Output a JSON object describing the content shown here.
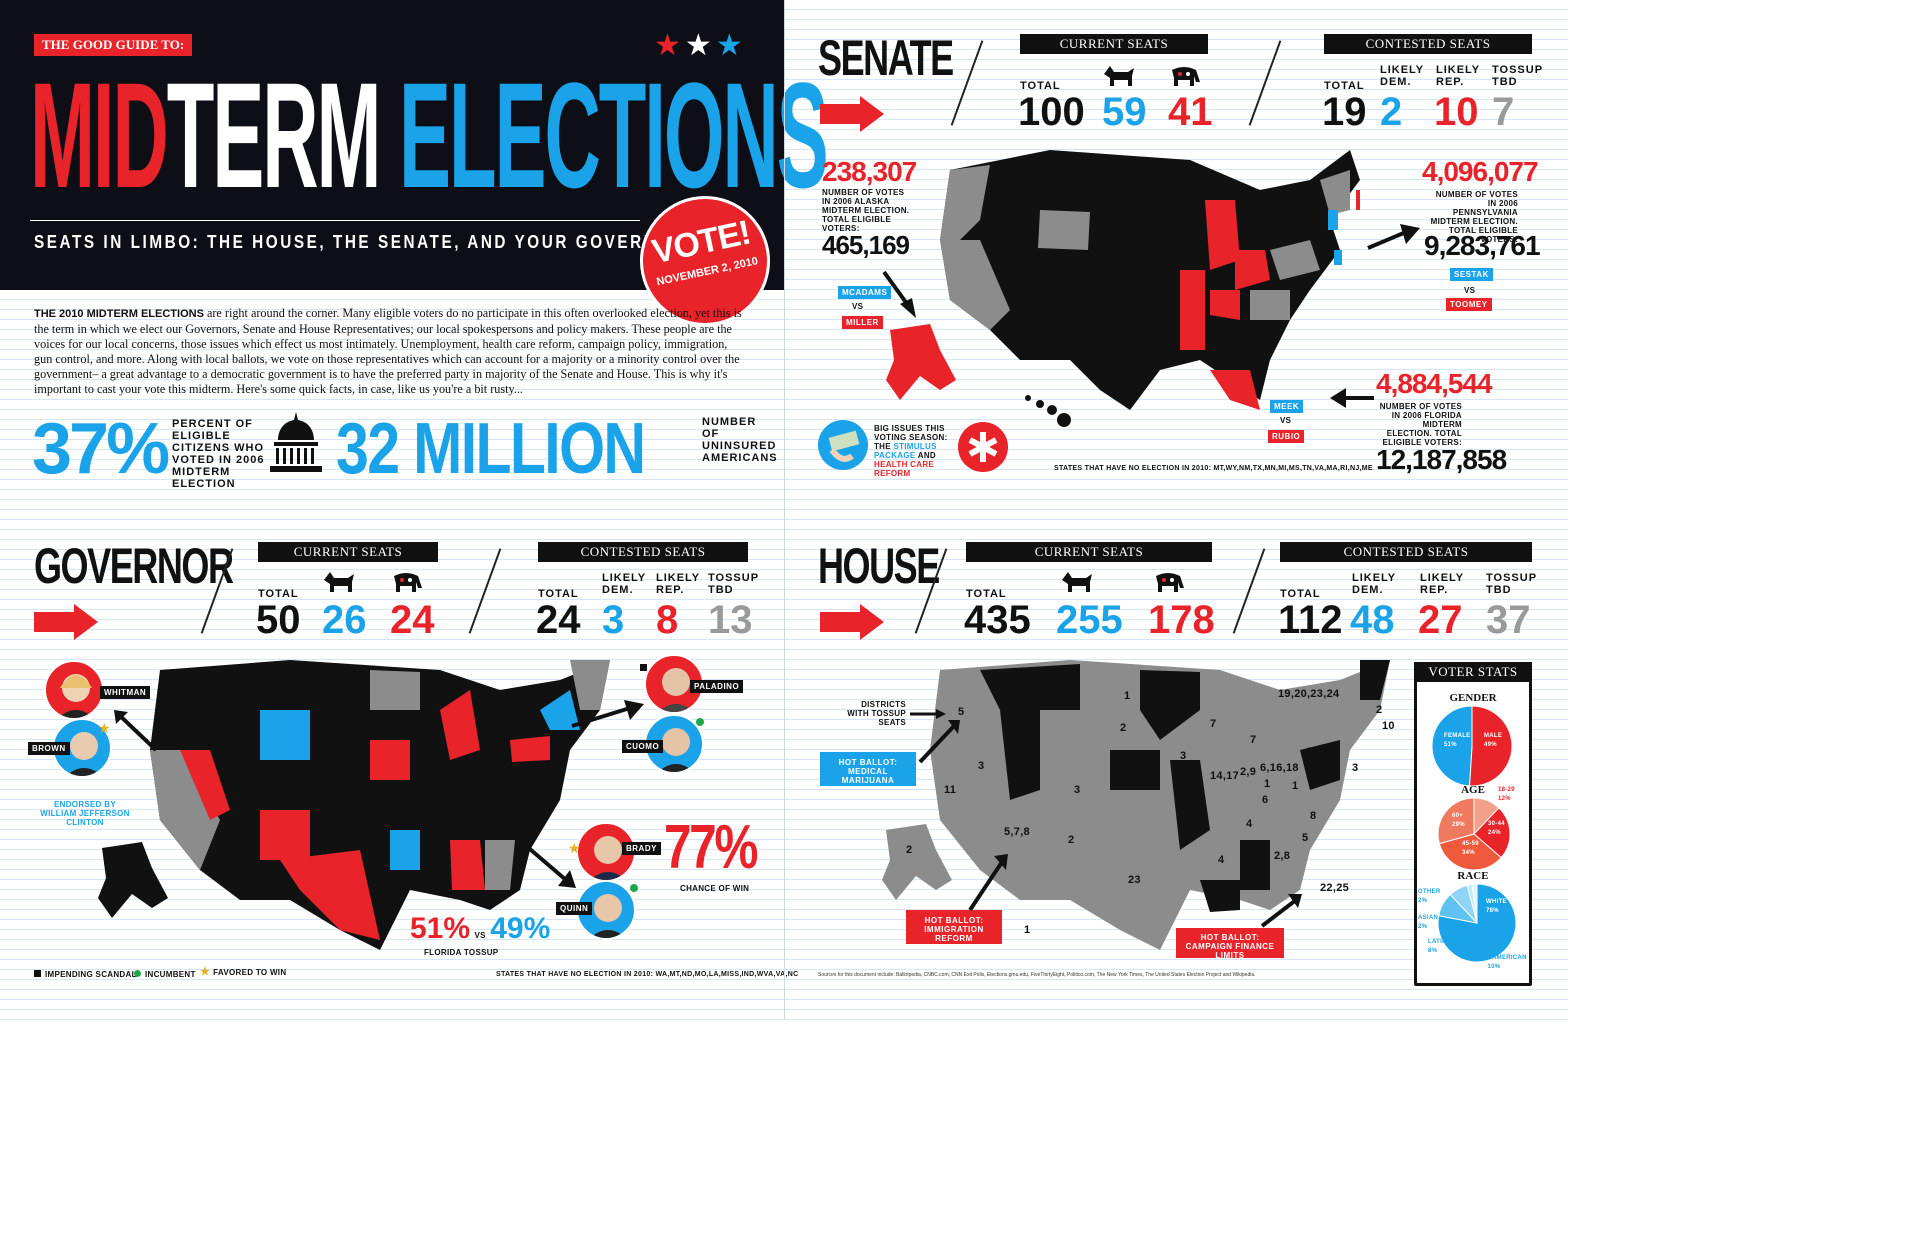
{
  "header": {
    "kicker": "THE GOOD GUIDE TO:",
    "title_mid": "MID",
    "title_term": "TERM",
    "title_elections": "ELECTIONS",
    "subtitle": "SEATS IN LIMBO: THE HOUSE, THE SENATE, AND YOUR GOVERNORS",
    "vote_badge": "VOTE!",
    "vote_date": "NOVEMBER 2, 2010",
    "stars": [
      "★",
      "★",
      "★"
    ]
  },
  "intro": {
    "lead": "THE 2010 MIDTERM ELECTIONS",
    "body": " are right around the corner. Many eligible voters do no participate in this often overlooked election, yet this is the term in which we elect our Governors, Senate and House Representatives; our local spokespersons and policy makers. These people are the voices for our local concerns, those issues which effect us most intimately. Unemployment, health care reform, campaign policy, immigration, gun control, and more. Along with local ballots, we vote on those representatives which can account for a majority or a minority control over the government– a great advantage to a democratic government is to have the preferred party in majority of the Senate and House. This is why it's important to cast your vote this midterm. Here's some quick facts, in case, like us you're a bit rusty...",
    "stat1_value": "37%",
    "stat1_label": "PERCENT OF ELIGIBLE CITIZENS WHO VOTED IN 2006 MIDTERM ELECTION",
    "stat2_value": "32 MILLION",
    "stat2_label": "NUMBER OF UNINSURED AMERICANS"
  },
  "labels": {
    "current_seats": "CURRENT SEATS",
    "contested_seats": "CONTESTED SEATS",
    "total": "TOTAL",
    "likely_dem": "LIKELY DEM.",
    "likely_rep": "LIKELY REP.",
    "tossup": "TOSSUP TBD"
  },
  "senate": {
    "title": "SENATE",
    "total": "100",
    "dem": "59",
    "rep": "41",
    "c_total": "19",
    "c_dem": "2",
    "c_rep": "10",
    "c_toss": "7",
    "ak_votes": "238,307",
    "ak_note": "NUMBER OF VOTES IN 2006 ALASKA MIDTERM ELECTION. TOTAL ELIGIBLE VOTERS:",
    "ak_eligible": "465,169",
    "ak_dem": "MCADAMS",
    "ak_vs": "VS",
    "ak_rep": "MILLER",
    "pa_votes": "4,096,077",
    "pa_note": "NUMBER OF VOTES IN 2006 PENNSYLVANIA MIDTERM ELECTION. TOTAL ELIGIBLE VOTERS:",
    "pa_eligible": "9,283,761",
    "pa_dem": "SESTAK",
    "pa_vs": "VS",
    "pa_rep": "TOOMEY",
    "fl_votes": "4,884,544",
    "fl_note": "NUMBER OF VOTES IN 2006 FLORIDA MIDTERM ELECTION. TOTAL ELIGIBLE VOTERS:",
    "fl_eligible": "12,187,858",
    "fl_dem": "MEEK",
    "fl_vs": "VS",
    "fl_rep": "RUBIO",
    "issues_a": "BIG ISSUES THIS VOTING SEASON: THE ",
    "issues_b": "STIMULUS PACKAGE",
    "issues_c": " AND ",
    "issues_d": "HEALTH CARE REFORM",
    "no_election": "STATES THAT HAVE NO ELECTION IN 2010: MT,WY,NM,TX,MN,MI,MS,TN,VA,MA,RI,NJ,ME"
  },
  "governor": {
    "title": "GOVERNOR",
    "total": "50",
    "dem": "26",
    "rep": "24",
    "c_total": "24",
    "c_dem": "3",
    "c_rep": "8",
    "c_toss": "13",
    "whitman": "WHITMAN",
    "brown": "BROWN",
    "endorsed": "ENDORSED BY WILLIAM JEFFERSON CLINTON",
    "paladino": "PALADINO",
    "cuomo": "CUOMO",
    "brady": "BRADY",
    "quinn": "QUINN",
    "chance_value": "77%",
    "chance_label": "CHANCE OF WIN",
    "fl_rep_pct": "51%",
    "fl_vs": "VS",
    "fl_dem_pct": "49%",
    "fl_label": "FLORIDA TOSSUP",
    "legend_scandal": "IMPENDING SCANDAL",
    "legend_incumbent": "INCUMBENT",
    "legend_favored": "FAVORED TO WIN",
    "no_election": "STATES THAT HAVE NO ELECTION IN 2010: WA,MT,ND,MO,LA,MISS,IND,WVA,VA,NC"
  },
  "house": {
    "title": "HOUSE",
    "total": "435",
    "dem": "255",
    "rep": "178",
    "c_total": "112",
    "c_dem": "48",
    "c_rep": "27",
    "c_toss": "37",
    "districts_note": "DISTRICTS WITH TOSSUP SEATS",
    "ballot_mj": "HOT BALLOT: MEDICAL MARIJUANA",
    "ballot_imm": "HOT BALLOT: IMMIGRATION REFORM",
    "ballot_cf": "HOT BALLOT: CAMPAIGN FINANCE LIMITS",
    "map_numbers": [
      "19,20,23,24",
      "2",
      "10",
      "3",
      "5",
      "3",
      "11",
      "2",
      "5,7,8",
      "3",
      "2",
      "23",
      "1",
      "3",
      "7",
      "7",
      "14,17",
      "2,9",
      "6,16,18",
      "8,10",
      "6",
      "1",
      "4",
      "8",
      "4",
      "2,8",
      "5",
      "1",
      "22,25",
      "1",
      "2"
    ],
    "sources": "Sources for this document include: Ballotpedia, CNBC.com, CNN Exit Polls, Elections.gmu.edu, FiveThirtyEight, Politico.com, The New York Times, The United States Election Project and Wikipedia."
  },
  "voter_stats": {
    "title": "VOTER STATS",
    "gender_title": "GENDER",
    "female": "FEMALE 51%",
    "male": "MALE 49%",
    "age_title": "AGE",
    "age_18": "18-29 12%",
    "age_60": "60+ 29%",
    "age_30": "30-44 24%",
    "age_45": "45-59 34%",
    "race_title": "RACE",
    "other": "OTHER 2%",
    "asian": "ASIAN 2%",
    "latino": "LATINO 8%",
    "white": "WHITE 78%",
    "african": "AFRICAN AMERICAN 10%"
  },
  "chart_data": [
    {
      "type": "pie",
      "title": "GENDER",
      "categories": [
        "FEMALE",
        "MALE"
      ],
      "values": [
        51,
        49
      ]
    },
    {
      "type": "pie",
      "title": "AGE",
      "categories": [
        "18-29",
        "30-44",
        "45-59",
        "60+"
      ],
      "values": [
        12,
        24,
        34,
        29
      ]
    },
    {
      "type": "pie",
      "title": "RACE",
      "categories": [
        "WHITE",
        "AFRICAN AMERICAN",
        "LATINO",
        "ASIAN",
        "OTHER"
      ],
      "values": [
        78,
        10,
        8,
        2,
        2
      ]
    }
  ],
  "colors": {
    "red": "#e8232a",
    "blue": "#1aa3e8",
    "black": "#111111",
    "gray": "#8c8c8c"
  }
}
